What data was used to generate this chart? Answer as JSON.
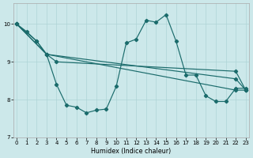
{
  "xlabel": "Humidex (Indice chaleur)",
  "xlim": [
    -0.3,
    23.3
  ],
  "ylim": [
    7.0,
    10.55
  ],
  "yticks": [
    7,
    8,
    9,
    10
  ],
  "xticks": [
    0,
    1,
    2,
    3,
    4,
    5,
    6,
    7,
    8,
    9,
    10,
    11,
    12,
    13,
    14,
    15,
    16,
    17,
    18,
    19,
    20,
    21,
    22,
    23
  ],
  "bg_color": "#cce8ea",
  "line_color": "#1a6b6b",
  "grid_color": "#aed4d6",
  "figsize": [
    3.2,
    2.0
  ],
  "dpi": 100,
  "lines": [
    {
      "x": [
        0,
        1,
        2,
        3,
        4,
        5,
        6,
        7,
        8,
        9,
        10,
        11,
        12,
        13,
        14,
        15,
        16,
        17,
        18,
        19,
        20,
        21,
        22,
        23
      ],
      "y": [
        10.0,
        9.8,
        9.55,
        9.2,
        8.4,
        7.85,
        7.8,
        7.65,
        7.72,
        7.75,
        8.35,
        9.5,
        9.6,
        10.1,
        10.05,
        10.25,
        9.55,
        8.65,
        8.65,
        8.1,
        7.95,
        7.95,
        8.3,
        8.3
      ]
    },
    {
      "x": [
        0,
        2,
        3,
        22,
        23
      ],
      "y": [
        10.0,
        9.55,
        9.2,
        8.25,
        8.25
      ]
    },
    {
      "x": [
        0,
        3,
        22,
        23
      ],
      "y": [
        10.0,
        9.2,
        8.55,
        8.25
      ]
    },
    {
      "x": [
        0,
        3,
        4,
        22,
        23
      ],
      "y": [
        10.0,
        9.2,
        9.0,
        8.75,
        8.25
      ]
    }
  ]
}
